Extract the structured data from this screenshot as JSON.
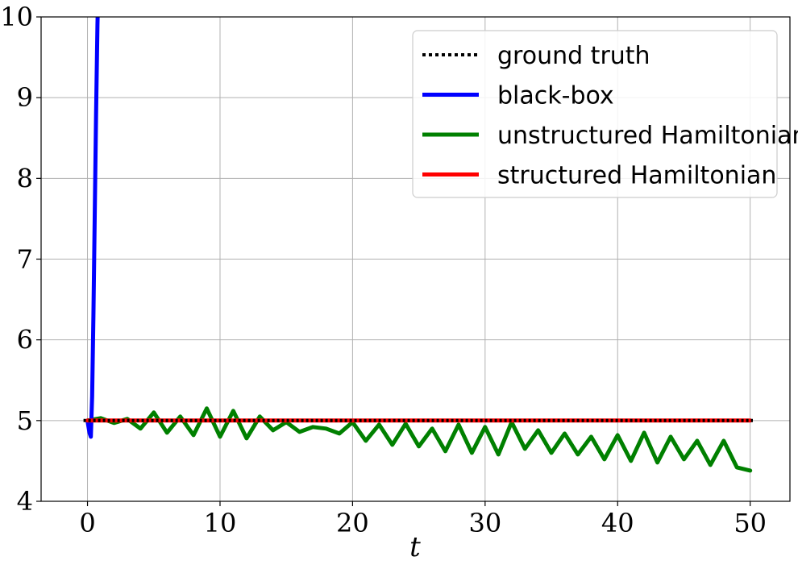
{
  "chart_data": {
    "type": "line",
    "title": "",
    "xlabel": "t",
    "ylabel": "",
    "xlim": [
      -3.5,
      53.0
    ],
    "ylim": [
      4,
      10
    ],
    "xticks": [
      0,
      10,
      20,
      30,
      40,
      50
    ],
    "yticks": [
      4,
      5,
      6,
      7,
      8,
      9,
      10
    ],
    "xtick_labels": [
      "0",
      "10",
      "20",
      "30",
      "40",
      "50"
    ],
    "ytick_labels": [
      "4",
      "5",
      "6",
      "7",
      "8",
      "9",
      "10"
    ],
    "grid": true,
    "legend_position": "top-right",
    "series": [
      {
        "name": "ground truth",
        "color": "#000000",
        "style": "dotted",
        "x": [
          -0.3,
          50.2
        ],
        "y": [
          5.0,
          5.0
        ]
      },
      {
        "name": "black-box",
        "color": "#0000ff",
        "style": "solid",
        "x": [
          0.0,
          0.15,
          0.25,
          0.35,
          0.45,
          0.55,
          0.65,
          0.75,
          0.85
        ],
        "y": [
          5.0,
          4.85,
          4.8,
          5.3,
          6.3,
          7.6,
          8.8,
          9.9,
          10.6
        ]
      },
      {
        "name": "unstructured Hamiltonian",
        "color": "#008000",
        "style": "solid",
        "x": [
          0,
          1,
          2,
          3,
          4,
          5,
          6,
          7,
          8,
          9,
          10,
          11,
          12,
          13,
          14,
          15,
          16,
          17,
          18,
          19,
          20,
          21,
          22,
          23,
          24,
          25,
          26,
          27,
          28,
          29,
          30,
          31,
          32,
          33,
          34,
          35,
          36,
          37,
          38,
          39,
          40,
          41,
          42,
          43,
          44,
          45,
          46,
          47,
          48,
          49,
          50
        ],
        "y": [
          5.0,
          5.03,
          4.97,
          5.02,
          4.9,
          5.1,
          4.85,
          5.05,
          4.82,
          5.15,
          4.8,
          5.12,
          4.78,
          5.05,
          4.88,
          4.98,
          4.86,
          4.92,
          4.9,
          4.84,
          4.98,
          4.75,
          4.95,
          4.7,
          4.96,
          4.68,
          4.9,
          4.62,
          4.95,
          4.6,
          4.92,
          4.58,
          4.98,
          4.65,
          4.88,
          4.6,
          4.84,
          4.58,
          4.8,
          4.52,
          4.82,
          4.5,
          4.85,
          4.48,
          4.8,
          4.52,
          4.75,
          4.45,
          4.75,
          4.42,
          4.38
        ]
      },
      {
        "name": "structured Hamiltonian",
        "color": "#ff0000",
        "style": "solid",
        "x": [
          0,
          10,
          20,
          30,
          40,
          50
        ],
        "y": [
          5.0,
          5.0,
          5.0,
          5.0,
          5.0,
          5.0
        ]
      }
    ]
  }
}
